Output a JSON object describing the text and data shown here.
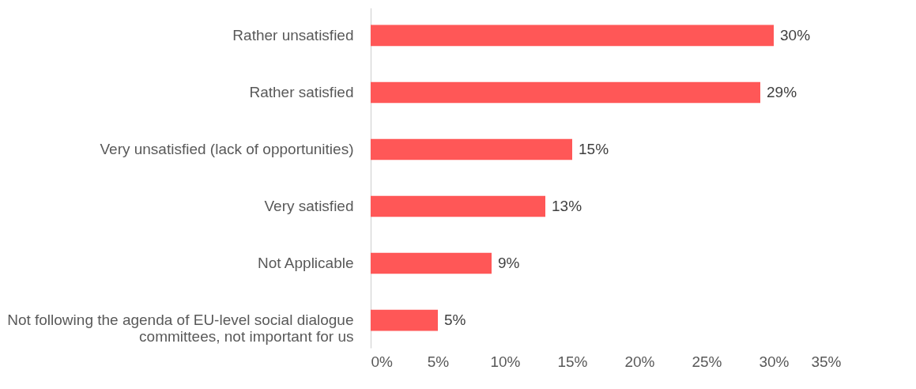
{
  "chart_data": {
    "type": "bar",
    "orientation": "horizontal",
    "categories": [
      "Rather unsatisfied",
      "Rather satisfied",
      "Very unsatisfied (lack of opportunities)",
      "Very satisfied",
      "Not Applicable",
      "Not following the agenda of EU-level social dialogue committees, not important for us"
    ],
    "values": [
      30,
      29,
      15,
      13,
      9,
      5
    ],
    "value_labels": [
      "30%",
      "29%",
      "15%",
      "13%",
      "9%",
      "5%"
    ],
    "color": "#ff5757",
    "xlim": [
      0,
      35
    ],
    "xticks": [
      {
        "value": 0,
        "label": "0%"
      },
      {
        "value": 5,
        "label": "5%"
      },
      {
        "value": 10,
        "label": "10%"
      },
      {
        "value": 15,
        "label": "15%"
      },
      {
        "value": 20,
        "label": "20%"
      },
      {
        "value": 25,
        "label": "25%"
      },
      {
        "value": 30,
        "label": "30%"
      },
      {
        "value": 35,
        "label": "35%"
      }
    ],
    "grid": false
  }
}
